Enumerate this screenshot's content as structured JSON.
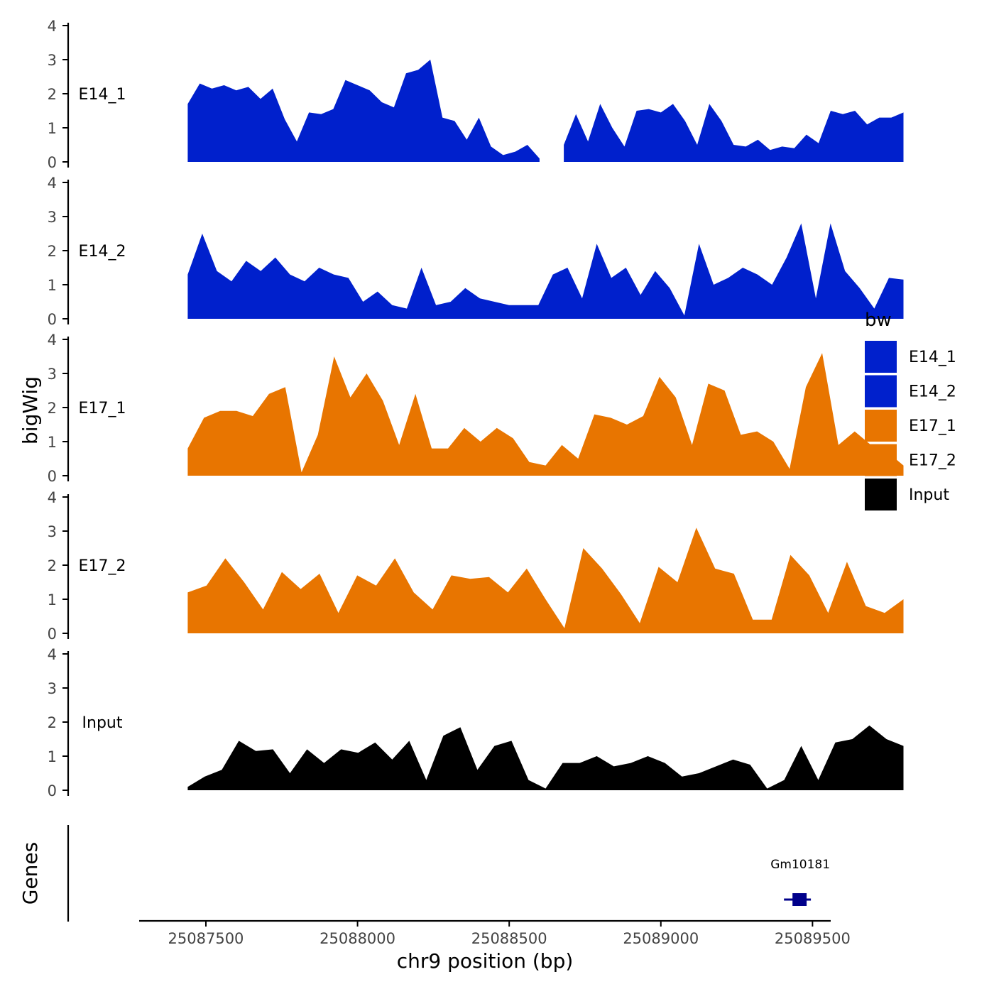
{
  "chart_data": {
    "type": "area",
    "title": "",
    "ylabel": "bigWig",
    "xlabel": "chr9 position (bp)",
    "xlim": [
      25087280,
      25089560
    ],
    "ylim": [
      0,
      4
    ],
    "yticks": [
      "0",
      "1",
      "2",
      "3",
      "4"
    ],
    "xticks": [
      {
        "value": 25087500,
        "label": "25087500"
      },
      {
        "value": 25088000,
        "label": "25088000"
      },
      {
        "value": 25088500,
        "label": "25088500"
      },
      {
        "value": 25089000,
        "label": "25089000"
      },
      {
        "value": 25089500,
        "label": "25089500"
      }
    ],
    "legend": {
      "title": "bw",
      "position": "right",
      "entries": [
        {
          "label": "E14_1",
          "color": "#0020CC"
        },
        {
          "label": "E14_2",
          "color": "#0020CC"
        },
        {
          "label": "E17_1",
          "color": "#E87500"
        },
        {
          "label": "E17_2",
          "color": "#E87500"
        },
        {
          "label": "Input",
          "color": "#000000"
        }
      ]
    },
    "x_start": 25087440,
    "x_step": 40,
    "series": [
      {
        "name": "E14_1",
        "color": "#0020CC",
        "values": [
          1.7,
          2.3,
          2.15,
          2.25,
          2.1,
          2.2,
          1.85,
          2.15,
          1.25,
          0.6,
          1.45,
          1.4,
          1.55,
          2.4,
          2.25,
          2.1,
          1.75,
          1.6,
          2.6,
          2.7,
          3.0,
          1.3,
          1.2,
          0.65,
          1.3,
          0.45,
          0.2,
          0.3,
          0.5,
          0.1,
          null,
          0.5,
          1.4,
          0.6,
          1.7,
          1.0,
          0.45,
          1.5,
          1.55,
          1.45,
          1.7,
          1.2,
          0.5,
          1.7,
          1.2,
          0.5,
          0.45,
          0.65,
          0.35,
          0.45,
          0.4,
          0.8,
          0.55,
          1.5,
          1.4,
          1.5,
          1.1,
          1.3,
          1.3,
          1.45
        ]
      },
      {
        "name": "E14_2",
        "color": "#0020CC",
        "values": [
          1.3,
          2.5,
          1.4,
          1.1,
          1.7,
          1.4,
          1.8,
          1.3,
          1.1,
          1.5,
          1.3,
          1.2,
          0.5,
          0.8,
          0.4,
          0.3,
          1.5,
          0.4,
          0.5,
          0.9,
          0.6,
          0.5,
          0.4,
          0.4,
          0.4,
          1.3,
          1.5,
          0.6,
          2.2,
          1.2,
          1.5,
          0.7,
          1.4,
          0.9,
          0.1,
          2.2,
          1.0,
          1.2,
          1.5,
          1.3,
          1.0,
          1.8,
          2.8,
          0.6,
          2.8,
          1.4,
          0.9,
          0.3,
          1.2,
          1.15
        ]
      },
      {
        "name": "E17_1",
        "color": "#E87500",
        "values": [
          0.8,
          1.7,
          1.9,
          1.9,
          1.75,
          2.4,
          2.6,
          0.1,
          1.2,
          3.5,
          2.3,
          3.0,
          2.2,
          0.9,
          2.4,
          0.8,
          0.8,
          1.4,
          1.0,
          1.4,
          1.1,
          0.4,
          0.3,
          0.9,
          0.5,
          1.8,
          1.7,
          1.5,
          1.75,
          2.9,
          2.3,
          0.9,
          2.7,
          2.5,
          1.2,
          1.3,
          1.0,
          0.2,
          2.6,
          3.6,
          0.9,
          1.3,
          0.9,
          0.7,
          0.3
        ]
      },
      {
        "name": "E17_2",
        "color": "#E87500",
        "values": [
          1.2,
          1.4,
          2.2,
          1.5,
          0.7,
          1.8,
          1.3,
          1.75,
          0.6,
          1.7,
          1.4,
          2.2,
          1.2,
          0.7,
          1.7,
          1.6,
          1.65,
          1.2,
          1.9,
          1.0,
          0.15,
          2.5,
          1.9,
          1.15,
          0.3,
          1.95,
          1.5,
          3.1,
          1.9,
          1.75,
          0.4,
          0.4,
          2.3,
          1.7,
          0.6,
          2.1,
          0.8,
          0.6,
          1.0
        ]
      },
      {
        "name": "Input",
        "color": "#000000",
        "values": [
          0.1,
          0.4,
          0.6,
          1.45,
          1.15,
          1.2,
          0.5,
          1.2,
          0.8,
          1.2,
          1.1,
          1.4,
          0.9,
          1.45,
          0.3,
          1.6,
          1.85,
          0.6,
          1.3,
          1.45,
          0.3,
          0.05,
          0.8,
          0.8,
          1.0,
          0.7,
          0.8,
          1.0,
          0.8,
          0.4,
          0.5,
          0.7,
          0.9,
          0.75,
          0.05,
          0.3,
          1.3,
          0.3,
          1.4,
          1.5,
          1.9,
          1.5,
          1.3
        ]
      }
    ],
    "genes": {
      "label": "Genes",
      "items": [
        {
          "name": "Gm10181",
          "start": 25089420,
          "end": 25089490,
          "color": "#00008B"
        }
      ]
    }
  }
}
